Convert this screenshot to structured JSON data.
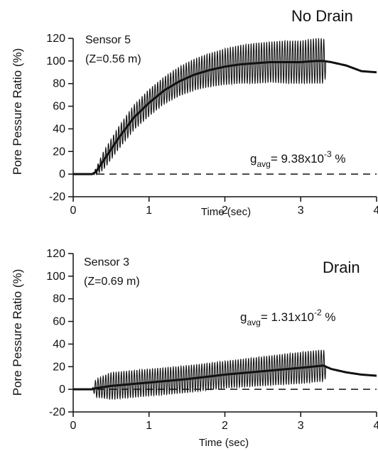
{
  "chart_data": [
    {
      "type": "line",
      "title": "No Drain",
      "xlabel": "Time (sec)",
      "ylabel": "Pore Pessure Ratio (%)",
      "sensor": "Sensor 5",
      "depth": "(Z=0.56 m)",
      "gavg": {
        "symbol": "g",
        "sub": "avg",
        "value": "= 9.38x10",
        "exp": "-3",
        "unit": " %"
      },
      "xlim": [
        0,
        4
      ],
      "ylim": [
        -20,
        120
      ],
      "xticks": [
        0,
        1,
        2,
        3,
        4
      ],
      "yticks": [
        -20,
        0,
        20,
        40,
        60,
        80,
        100,
        120
      ],
      "series": [
        {
          "x": [
            0,
            0.25,
            0.3,
            0.4,
            0.6,
            0.8,
            1.0,
            1.2,
            1.4,
            1.6,
            1.8,
            2.0,
            2.2,
            2.4,
            2.6,
            2.8,
            3.0,
            3.2,
            3.3,
            3.4,
            3.6,
            3.8,
            4.0
          ],
          "mean": [
            0,
            0,
            2,
            12,
            32,
            50,
            63,
            74,
            82,
            88,
            92,
            95,
            97,
            98,
            99,
            99,
            99,
            100,
            100,
            99,
            96,
            91,
            90
          ],
          "amp": [
            0,
            0,
            3,
            8,
            10,
            11,
            12,
            12,
            13,
            14,
            15,
            16,
            17,
            18,
            18,
            19,
            19,
            20,
            20,
            0,
            0,
            0,
            0
          ]
        }
      ],
      "reference_line": {
        "y": 0,
        "style": "dashed"
      }
    },
    {
      "type": "line",
      "title": "Drain",
      "xlabel": "Time (sec)",
      "ylabel": "Pore Pessure Ratio (%)",
      "sensor": "Sensor 3",
      "depth": "(Z=0.69 m)",
      "gavg": {
        "symbol": "g",
        "sub": "avg",
        "value": "= 1.31x10",
        "exp": "-2",
        "unit": " %"
      },
      "xlim": [
        0,
        4
      ],
      "ylim": [
        -20,
        120
      ],
      "xticks": [
        0,
        1,
        2,
        3,
        4
      ],
      "yticks": [
        -20,
        0,
        20,
        40,
        60,
        80,
        100,
        120
      ],
      "series": [
        {
          "x": [
            0,
            0.25,
            0.3,
            0.5,
            1.0,
            1.5,
            2.0,
            2.5,
            3.0,
            3.3,
            3.4,
            3.6,
            3.8,
            4.0
          ],
          "mean": [
            0,
            0,
            1,
            3,
            6,
            9,
            13,
            16,
            19,
            21,
            18,
            15,
            13,
            12
          ],
          "amp": [
            0,
            0,
            8,
            12,
            12,
            12,
            12,
            13,
            14,
            14,
            0,
            0,
            0,
            0
          ]
        }
      ],
      "reference_line": {
        "y": 0,
        "style": "dashed"
      }
    }
  ]
}
